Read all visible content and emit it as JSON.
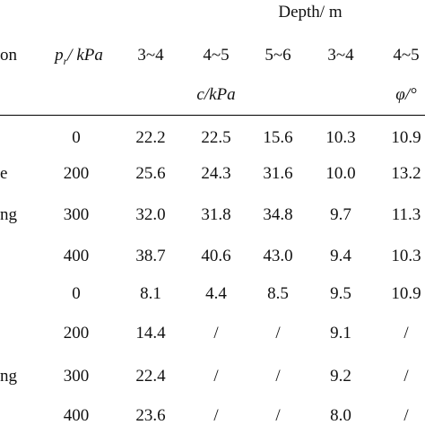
{
  "header": {
    "depth_title": "Depth/ m",
    "col0_fragment": "on",
    "pr_label": "p",
    "pr_sub": "r",
    "pr_unit": "/ kPa",
    "depth_ranges": [
      "3~4",
      "4~5",
      "5~6",
      "3~4",
      "4~5"
    ],
    "c_label": "c/kPa",
    "phi_label": "φ/°"
  },
  "row_labels": [
    "e",
    "ng",
    "",
    "ng"
  ],
  "rows": [
    {
      "pr": "0",
      "c": [
        "22.2",
        "22.5",
        "15.6"
      ],
      "phi": [
        "10.3",
        "10.9"
      ]
    },
    {
      "pr": "200",
      "c": [
        "25.6",
        "24.3",
        "31.6"
      ],
      "phi": [
        "10.0",
        "13.2"
      ]
    },
    {
      "pr": "300",
      "c": [
        "32.0",
        "31.8",
        "34.8"
      ],
      "phi": [
        "9.7",
        "11.3"
      ]
    },
    {
      "pr": "400",
      "c": [
        "38.7",
        "40.6",
        "43.0"
      ],
      "phi": [
        "9.4",
        "10.3"
      ]
    },
    {
      "pr": "0",
      "c": [
        "8.1",
        "4.4",
        "8.5"
      ],
      "phi": [
        "9.5",
        "10.9"
      ]
    },
    {
      "pr": "200",
      "c": [
        "14.4",
        "/",
        "/"
      ],
      "phi": [
        "9.1",
        "/"
      ]
    },
    {
      "pr": "300",
      "c": [
        "22.4",
        "/",
        "/"
      ],
      "phi": [
        "9.2",
        "/"
      ]
    },
    {
      "pr": "400",
      "c": [
        "23.6",
        "/",
        "/"
      ],
      "phi": [
        "8.0",
        "/"
      ]
    }
  ]
}
